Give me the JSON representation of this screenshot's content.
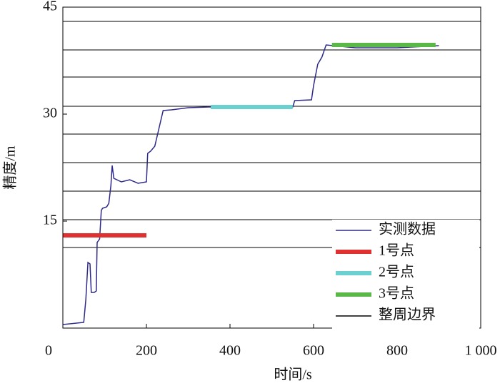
{
  "chart_data": {
    "type": "line",
    "xlabel": "时间/s",
    "ylabel": "精度/m",
    "xlim": [
      0,
      1000
    ],
    "ylim": [
      0,
      45
    ],
    "xticks": [
      0,
      200,
      400,
      600,
      800,
      {
        "value": 1000,
        "label": "1 000"
      }
    ],
    "yticks": [
      15,
      30,
      45
    ],
    "legend": "lower right",
    "series": [
      {
        "name": "实测数据",
        "color": "#2e2a8a",
        "x": [
          0,
          50,
          55,
          60,
          65,
          68,
          75,
          80,
          82,
          88,
          92,
          95,
          105,
          110,
          115,
          118,
          122,
          140,
          160,
          180,
          200,
          203,
          210,
          220,
          230,
          240,
          260,
          300,
          350,
          450,
          550,
          555,
          595,
          600,
          610,
          620,
          630,
          700,
          800,
          900
        ],
        "values": [
          0.5,
          0.8,
          4,
          9.2,
          9.0,
          5.0,
          5.0,
          5.2,
          12,
          12.5,
          16.5,
          16.8,
          17,
          17.5,
          20,
          22.8,
          21,
          20.5,
          20.8,
          20.3,
          20.5,
          24.5,
          24.8,
          25.5,
          28,
          30.5,
          30.6,
          30.9,
          31.0,
          31.0,
          31.0,
          31.9,
          32,
          34,
          37,
          38,
          39.7,
          39.3,
          39.3,
          39.6
        ]
      },
      {
        "name": "1号点",
        "color": "#e03030",
        "x": [
          0,
          200
        ],
        "values": [
          13.0,
          13.0
        ]
      },
      {
        "name": "2号点",
        "color": "#6ccfd0",
        "x": [
          354,
          550
        ],
        "values": [
          31.0,
          31.0
        ]
      },
      {
        "name": "3号点",
        "color": "#5ab848",
        "x": [
          644,
          892
        ],
        "values": [
          39.7,
          39.7
        ]
      },
      {
        "name": "整周边界",
        "color": "#000000",
        "type": "hline",
        "values": [
          43.0,
          39.0,
          35.2,
          31.1,
          27.2,
          23.2,
          19.2,
          15.2,
          11.3
        ]
      }
    ]
  }
}
